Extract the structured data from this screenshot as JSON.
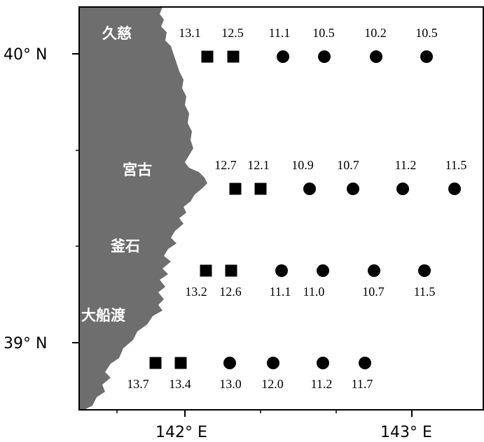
{
  "axes": {
    "lat_labels": [
      "40° N",
      "39° N"
    ],
    "lon_labels": [
      "142° E",
      "143° E"
    ]
  },
  "cities": [
    "久慈",
    "宮古",
    "釜石",
    "大船渡"
  ],
  "colors": {
    "land": "#6e6e6e",
    "marker": "#000000"
  },
  "marker_shapes": {
    "square": "square-marker",
    "circle": "circle-marker"
  },
  "sections": [
    {
      "name": "kuji-section",
      "values": [
        "13.1",
        "12.5",
        "11.1",
        "10.5",
        "10.2",
        "10.5"
      ],
      "shapes": [
        "square",
        "square",
        "circle",
        "circle",
        "circle",
        "circle"
      ],
      "label_position": "above"
    },
    {
      "name": "miyako-section",
      "values": [
        "12.7",
        "12.1",
        "10.9",
        "10.7",
        "11.2",
        "11.5"
      ],
      "shapes": [
        "square",
        "square",
        "circle",
        "circle",
        "circle",
        "circle"
      ],
      "label_position": "above"
    },
    {
      "name": "kamaishi-section",
      "values": [
        "13.2",
        "12.6",
        "11.1",
        "11.0",
        "10.7",
        "11.5"
      ],
      "shapes": [
        "square",
        "square",
        "circle",
        "circle",
        "circle",
        "circle"
      ],
      "label_position": "below"
    },
    {
      "name": "ofunato-section",
      "values": [
        "13.7",
        "13.4",
        "13.0",
        "12.0",
        "11.2",
        "11.7"
      ],
      "shapes": [
        "square",
        "square",
        "circle",
        "circle",
        "circle",
        "circle"
      ],
      "label_position": "below"
    }
  ]
}
